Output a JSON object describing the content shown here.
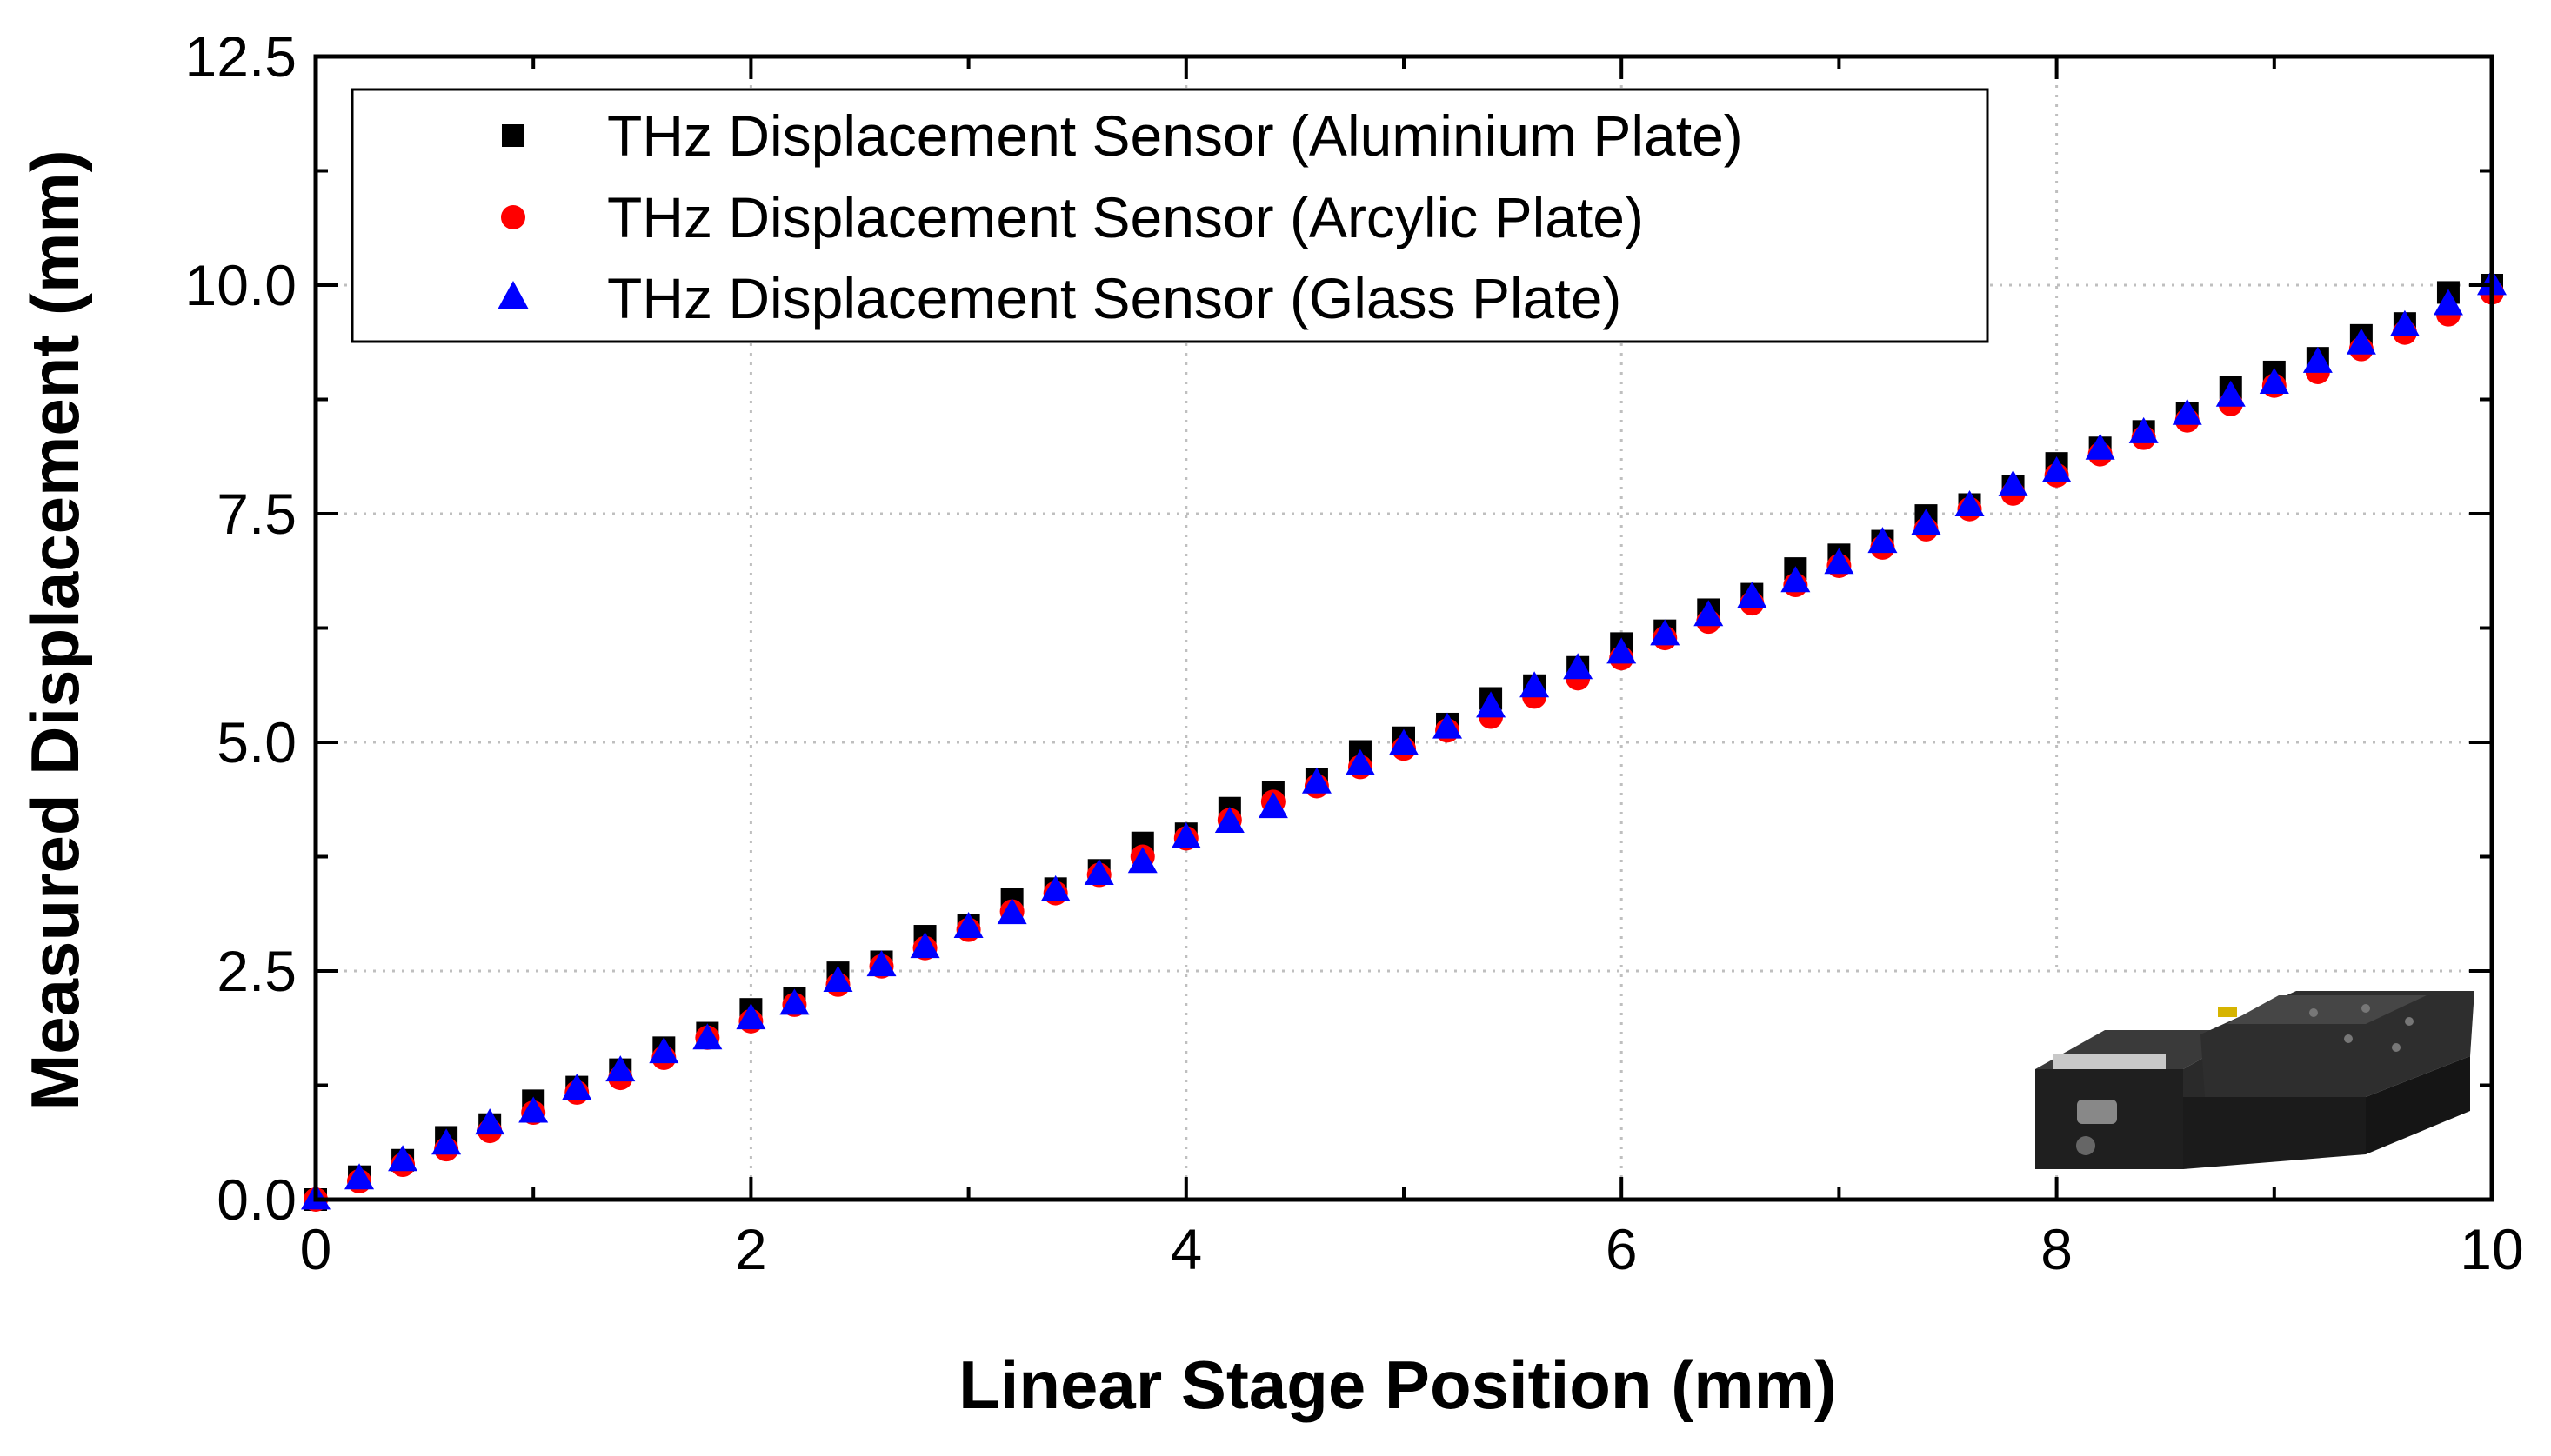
{
  "chart_data": {
    "type": "scatter",
    "title": "",
    "xlabel": "Linear Stage Position (mm)",
    "ylabel": "Measured Displacement (mm)",
    "xlim": [
      0,
      10
    ],
    "ylim": [
      0,
      12.5
    ],
    "xticks": [
      0,
      2,
      4,
      6,
      8,
      10
    ],
    "yticks": [
      0,
      2.5,
      5,
      7.5,
      10,
      12.5
    ],
    "xtick_labels": [
      "0",
      "2",
      "4",
      "6",
      "8",
      "10"
    ],
    "ytick_labels": [
      "0.0",
      "2.5",
      "5.0",
      "7.5",
      "10.0",
      "12.5"
    ],
    "grid": true,
    "legend_position": "top-left",
    "x": [
      0,
      0.2,
      0.4,
      0.6,
      0.8,
      1.0,
      1.2,
      1.4,
      1.6,
      1.8,
      2.0,
      2.2,
      2.4,
      2.6,
      2.8,
      3.0,
      3.2,
      3.4,
      3.6,
      3.8,
      4.0,
      4.2,
      4.4,
      4.6,
      4.8,
      5.0,
      5.2,
      5.4,
      5.6,
      5.8,
      6.0,
      6.2,
      6.4,
      6.6,
      6.8,
      7.0,
      7.2,
      7.4,
      7.6,
      7.8,
      8.0,
      8.2,
      8.4,
      8.6,
      8.8,
      9.0,
      9.2,
      9.4,
      9.6,
      9.8,
      10.0
    ],
    "series": [
      {
        "name": "THz Displacement Sensor (Aluminium Plate)",
        "marker": "square",
        "color": "#000000",
        "values": [
          0.0,
          0.25,
          0.43,
          0.68,
          0.82,
          1.08,
          1.23,
          1.42,
          1.66,
          1.82,
          2.08,
          2.2,
          2.48,
          2.6,
          2.88,
          3.0,
          3.28,
          3.4,
          3.6,
          3.9,
          4.0,
          4.28,
          4.45,
          4.6,
          4.9,
          5.05,
          5.2,
          5.48,
          5.62,
          5.82,
          6.08,
          6.22,
          6.45,
          6.62,
          6.9,
          7.05,
          7.2,
          7.48,
          7.6,
          7.8,
          8.05,
          8.22,
          8.4,
          8.6,
          8.88,
          9.05,
          9.2,
          9.45,
          9.58,
          9.92,
          10.0
        ]
      },
      {
        "name": "THz Displacement Sensor (Arcylic Plate)",
        "marker": "circle",
        "color": "#ff0000",
        "values": [
          0.0,
          0.2,
          0.38,
          0.55,
          0.75,
          0.95,
          1.17,
          1.33,
          1.55,
          1.77,
          1.95,
          2.13,
          2.35,
          2.55,
          2.75,
          2.95,
          3.15,
          3.35,
          3.55,
          3.75,
          3.95,
          4.15,
          4.35,
          4.52,
          4.73,
          4.93,
          5.13,
          5.28,
          5.5,
          5.7,
          5.92,
          6.14,
          6.32,
          6.52,
          6.72,
          6.93,
          7.13,
          7.33,
          7.55,
          7.72,
          7.92,
          8.15,
          8.33,
          8.52,
          8.7,
          8.9,
          9.05,
          9.3,
          9.48,
          9.68,
          9.92
        ]
      },
      {
        "name": "THz Displacement Sensor (Glass Plate)",
        "marker": "triangle",
        "color": "#0000ff",
        "values": [
          0.0,
          0.22,
          0.42,
          0.6,
          0.82,
          0.95,
          1.2,
          1.4,
          1.6,
          1.75,
          1.97,
          2.13,
          2.38,
          2.55,
          2.75,
          2.97,
          3.12,
          3.37,
          3.55,
          3.68,
          3.95,
          4.12,
          4.28,
          4.55,
          4.75,
          4.97,
          5.15,
          5.38,
          5.6,
          5.8,
          5.97,
          6.17,
          6.38,
          6.58,
          6.75,
          6.95,
          7.18,
          7.38,
          7.58,
          7.8,
          7.95,
          8.2,
          8.38,
          8.58,
          8.78,
          8.92,
          9.15,
          9.35,
          9.55,
          9.78,
          10.0
        ]
      }
    ],
    "inset": "linear-stage-photo"
  }
}
